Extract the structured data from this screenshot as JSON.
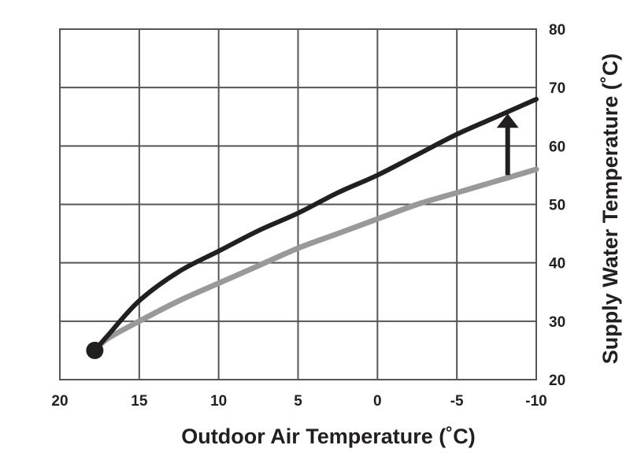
{
  "chart_data": {
    "type": "line",
    "xlabel": "Outdoor Air Temperature (˚C)",
    "ylabel": "Supply Water Temperature (˚C)",
    "xlim": [
      20,
      -10
    ],
    "ylim": [
      20,
      80
    ],
    "x_ticks": [
      "20",
      "15",
      "10",
      "5",
      "0",
      "-5",
      "-10"
    ],
    "y_ticks": [
      "80",
      "70",
      "60",
      "50",
      "40",
      "30",
      "20"
    ],
    "grid": true,
    "series": [
      {
        "color": "#231f20",
        "x": [
          17.8,
          17,
          15,
          12.5,
          10,
          7.5,
          5,
          2.5,
          0,
          -2.5,
          -5,
          -7.5,
          -10
        ],
        "y": [
          25,
          27.5,
          33.5,
          38.5,
          42,
          45.5,
          48.5,
          52,
          55,
          58.5,
          62,
          65,
          68
        ]
      },
      {
        "color": "#999999",
        "x": [
          17.8,
          17,
          15,
          12.5,
          10,
          7.5,
          5,
          2.5,
          0,
          -2.5,
          -5,
          -7.5,
          -10
        ],
        "y": [
          25,
          27,
          30,
          33.5,
          36.5,
          39.5,
          42.5,
          45,
          47.5,
          50,
          52,
          54,
          56
        ]
      }
    ],
    "start_marker": {
      "x": 17.8,
      "y": 25
    },
    "arrow": {
      "x": -8.2,
      "from_y": 55,
      "to_y": 65
    }
  }
}
